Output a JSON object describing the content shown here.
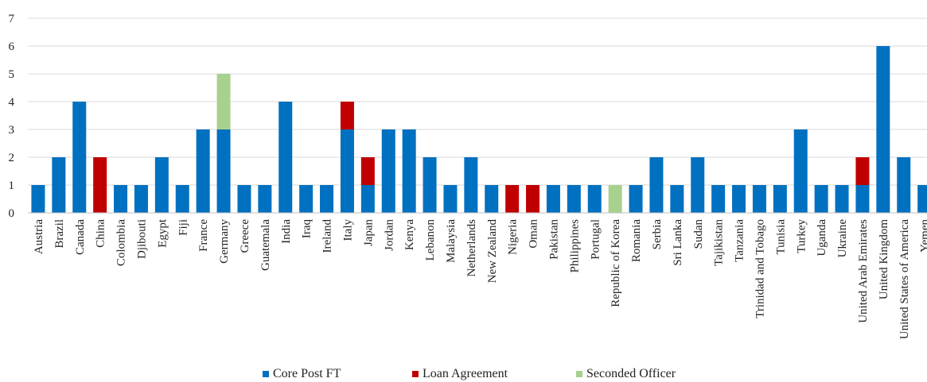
{
  "chart_data": {
    "type": "bar",
    "stacked": true,
    "title": "",
    "xlabel": "",
    "ylabel": "",
    "ylim": [
      0,
      7
    ],
    "yticks": [
      0,
      1,
      2,
      3,
      4,
      5,
      6,
      7
    ],
    "grid": true,
    "legend_position": "bottom",
    "categories": [
      "Austria",
      "Brazil",
      "Canada",
      "China",
      "Colombia",
      "Djibouti",
      "Egypt",
      "Fiji",
      "France",
      "Germany",
      "Greece",
      "Guatemala",
      "India",
      "Iraq",
      "Ireland",
      "Italy",
      "Japan",
      "Jordan",
      "Kenya",
      "Lebanon",
      "Malaysia",
      "Netherlands",
      "New Zealand",
      "Nigeria",
      "Oman",
      "Pakistan",
      "Philippines",
      "Portugal",
      "Republic of Korea",
      "Romania",
      "Serbia",
      "Sri Lanka",
      "Sudan",
      "Tajikistan",
      "Tanzania",
      "Trinidad and Tobago",
      "Tunisia",
      "Turkey",
      "Uganda",
      "Ukraine",
      "United Arab Emirates",
      "United Kingdom",
      "United States of America",
      "Yemen"
    ],
    "series": [
      {
        "name": "Core Post  FT",
        "color": "#0070C0",
        "values": [
          1,
          2,
          4,
          0,
          1,
          1,
          2,
          1,
          3,
          3,
          1,
          1,
          4,
          1,
          1,
          3,
          1,
          3,
          3,
          2,
          1,
          2,
          1,
          0,
          0,
          1,
          1,
          1,
          0,
          1,
          2,
          1,
          2,
          1,
          1,
          1,
          1,
          3,
          1,
          1,
          1,
          6,
          2,
          1
        ]
      },
      {
        "name": "Loan Agreement",
        "color": "#C00000",
        "values": [
          0,
          0,
          0,
          2,
          0,
          0,
          0,
          0,
          0,
          0,
          0,
          0,
          0,
          0,
          0,
          1,
          1,
          0,
          0,
          0,
          0,
          0,
          0,
          1,
          1,
          0,
          0,
          0,
          0,
          0,
          0,
          0,
          0,
          0,
          0,
          0,
          0,
          0,
          0,
          0,
          1,
          0,
          0,
          0
        ]
      },
      {
        "name": "Seconded Officer",
        "color": "#A9D18E",
        "values": [
          0,
          0,
          0,
          0,
          0,
          0,
          0,
          0,
          0,
          2,
          0,
          0,
          0,
          0,
          0,
          0,
          0,
          0,
          0,
          0,
          0,
          0,
          0,
          0,
          0,
          0,
          0,
          0,
          1,
          0,
          0,
          0,
          0,
          0,
          0,
          0,
          0,
          0,
          0,
          0,
          0,
          0,
          0,
          0
        ]
      }
    ]
  }
}
